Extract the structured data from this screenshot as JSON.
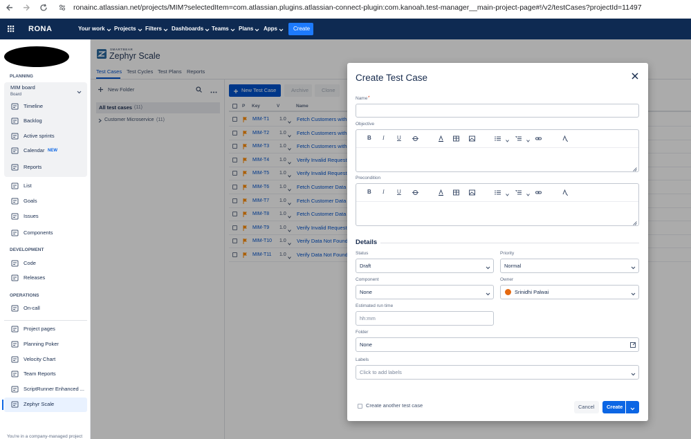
{
  "browser": {
    "url": "ronainc.atlassian.net/projects/MIM?selectedItem=com.atlassian.plugins.atlassian-connect-plugin:com.kanoah.test-manager__main-project-page#!/v2/testCases?projectId=11497"
  },
  "topnav": {
    "logo": "RONA",
    "menus": [
      "Your work",
      "Projects",
      "Filters",
      "Dashboards",
      "Teams",
      "Plans",
      "Apps"
    ],
    "create": "Create"
  },
  "sidebar": {
    "planning_heading": "PLANNING",
    "board": {
      "name": "MIM board",
      "type": "Board"
    },
    "planning_items": [
      "Timeline",
      "Backlog",
      "Active sprints",
      "Calendar",
      "Reports"
    ],
    "calendar_badge": "NEW",
    "items": [
      "List",
      "Goals",
      "Issues",
      "Components"
    ],
    "development_heading": "DEVELOPMENT",
    "development_items": [
      "Code",
      "Releases"
    ],
    "operations_heading": "OPERATIONS",
    "operations_items": [
      "On-call"
    ],
    "apps": [
      "Project pages",
      "Planning Poker",
      "Velocity Chart",
      "Team Reports",
      "ScriptRunner Enhanced ...",
      "Zephyr Scale"
    ],
    "footer": "You're in a company-managed project"
  },
  "app": {
    "brand": "SMARTBEAR",
    "name": "Zephyr Scale",
    "tabs": [
      "Test Cases",
      "Test Cycles",
      "Test Plans",
      "Reports"
    ],
    "new_folder": "New Folder",
    "tree": {
      "all": "All test cases",
      "all_count": "(11)",
      "folder": "Customer Microservice",
      "folder_count": "(11)"
    },
    "toolbar": {
      "new": "New Test Case",
      "archive": "Archive",
      "clone": "Clone"
    },
    "table": {
      "columns": [
        "P",
        "Key",
        "V",
        "Name"
      ],
      "rows": [
        [
          "MIM-T1",
          "1.0",
          "Fetch Customers with"
        ],
        [
          "MIM-T2",
          "1.0",
          "Fetch Customers with"
        ],
        [
          "MIM-T3",
          "1.0",
          "Fetch Customers with"
        ],
        [
          "MIM-T4",
          "1.0",
          "Verify Invalid Request"
        ],
        [
          "MIM-T5",
          "1.0",
          "Verify Invalid Request"
        ],
        [
          "MIM-T6",
          "1.0",
          "Fetch Customer Data"
        ],
        [
          "MIM-T7",
          "1.0",
          "Fetch Customer Data"
        ],
        [
          "MIM-T8",
          "1.0",
          "Fetch Customer Data"
        ],
        [
          "MIM-T9",
          "1.0",
          "Verify Invalid Request"
        ],
        [
          "MIM-T10",
          "1.0",
          "Verify Data Not Found"
        ],
        [
          "MIM-T11",
          "1.0",
          "Verify Data Not Found"
        ]
      ]
    }
  },
  "modal": {
    "title": "Create Test Case",
    "name_label": "Name",
    "required": "*",
    "objective_label": "Objective",
    "precondition_label": "Precondition",
    "editor_toolbar": [
      "B",
      "I",
      "U"
    ],
    "details": "Details",
    "status": {
      "label": "Status",
      "value": "Draft"
    },
    "priority": {
      "label": "Priority",
      "value": "Normal"
    },
    "component": {
      "label": "Component",
      "value": "None"
    },
    "owner": {
      "label": "Owner",
      "value": "Srinidhi Palwai"
    },
    "estimate": {
      "label": "Estimated run time",
      "placeholder": "hh:mm"
    },
    "folder": {
      "label": "Folder",
      "value": "None"
    },
    "labels": {
      "label": "Labels",
      "placeholder": "Click to add labels"
    },
    "create_another": "Create another test case",
    "cancel": "Cancel",
    "create": "Create"
  }
}
